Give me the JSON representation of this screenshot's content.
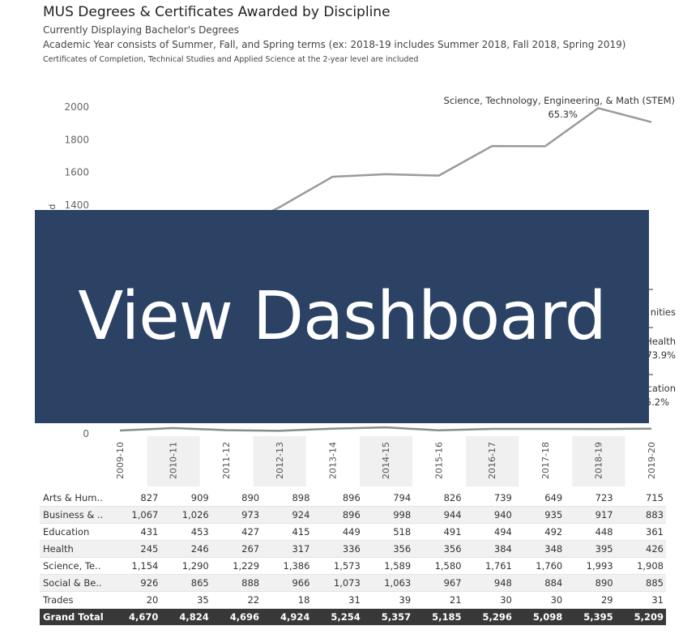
{
  "header": {
    "title": "MUS Degrees & Certificates Awarded by Discipline",
    "subtitle": "Currently Displaying Bachelor's Degrees",
    "note1": "Academic Year consists of Summer, Fall, and Spring terms (ex:  2018-19 includes Summer 2018, Fall 2018, Spring 2019)",
    "note2": "Certificates of Completion, Technical Studies and Applied Science at the 2-year level are included"
  },
  "overlay": {
    "label": "View Dashboard"
  },
  "chart_data": {
    "type": "line",
    "ylabel": "ded",
    "ylim": [
      0,
      2100
    ],
    "yticks": [
      0,
      1400,
      1600,
      1800,
      2000
    ],
    "categories": [
      "2009-10",
      "2010-11",
      "2011-12",
      "2012-13",
      "2013-14",
      "2014-15",
      "2015-16",
      "2016-17",
      "2017-18",
      "2018-19",
      "2019-20"
    ],
    "highlighted_categories": [
      "2010-11",
      "2012-13",
      "2014-15",
      "2016-17",
      "2018-19"
    ],
    "series": [
      {
        "name": "Science, Technology, Engineering, & Math (STEM)",
        "annotation": "65.3%",
        "values": [
          1154,
          1290,
          1229,
          1386,
          1573,
          1589,
          1580,
          1761,
          1760,
          1993,
          1908
        ]
      },
      {
        "name": "Trades",
        "values": [
          20,
          35,
          22,
          18,
          31,
          39,
          21,
          30,
          30,
          29,
          31
        ]
      }
    ],
    "partial_labels": [
      {
        "name": "nities"
      },
      {
        "name": "Health",
        "annotation": "73.9%"
      },
      {
        "name": "cation",
        "annotation": "5.2%"
      }
    ]
  },
  "table": {
    "columns": [
      "2009-10",
      "2010-11",
      "2011-12",
      "2012-13",
      "2013-14",
      "2014-15",
      "2015-16",
      "2016-17",
      "2017-18",
      "2018-19",
      "2019-20"
    ],
    "rows": [
      {
        "label": "Arts & Hum..",
        "values": [
          "827",
          "909",
          "890",
          "898",
          "896",
          "794",
          "826",
          "739",
          "649",
          "723",
          "715"
        ]
      },
      {
        "label": "Business & ..",
        "values": [
          "1,067",
          "1,026",
          "973",
          "924",
          "896",
          "998",
          "944",
          "940",
          "935",
          "917",
          "883"
        ]
      },
      {
        "label": "Education",
        "values": [
          "431",
          "453",
          "427",
          "415",
          "449",
          "518",
          "491",
          "494",
          "492",
          "448",
          "361"
        ]
      },
      {
        "label": "Health",
        "values": [
          "245",
          "246",
          "267",
          "317",
          "336",
          "356",
          "356",
          "384",
          "348",
          "395",
          "426"
        ]
      },
      {
        "label": "Science, Te..",
        "values": [
          "1,154",
          "1,290",
          "1,229",
          "1,386",
          "1,573",
          "1,589",
          "1,580",
          "1,761",
          "1,760",
          "1,993",
          "1,908"
        ]
      },
      {
        "label": "Social & Be..",
        "values": [
          "926",
          "865",
          "888",
          "966",
          "1,073",
          "1,063",
          "967",
          "948",
          "884",
          "890",
          "885"
        ]
      },
      {
        "label": "Trades",
        "values": [
          "20",
          "35",
          "22",
          "18",
          "31",
          "39",
          "21",
          "30",
          "30",
          "29",
          "31"
        ]
      }
    ],
    "total": {
      "label": "Grand Total",
      "values": [
        "4,670",
        "4,824",
        "4,696",
        "4,924",
        "5,254",
        "5,357",
        "5,185",
        "5,296",
        "5,098",
        "5,395",
        "5,209"
      ]
    }
  }
}
